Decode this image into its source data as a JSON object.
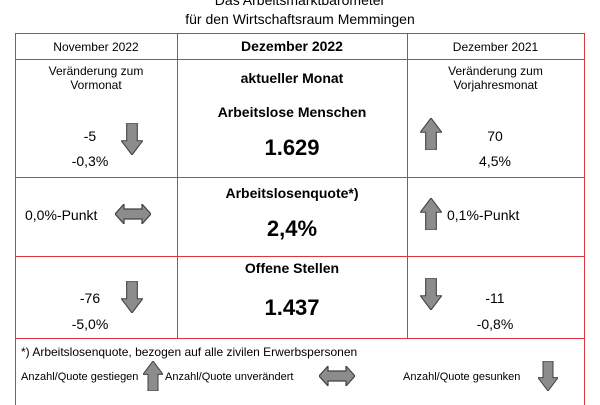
{
  "title_line1": "Das Arbeitsmarktbarometer",
  "title_line2": "für den Wirtschaftsraum Memmingen",
  "header": {
    "left_month": "November 2022",
    "center_month": "Dezember 2022",
    "right_month": "Dezember 2021",
    "left_sub_line1": "Veränderung zum",
    "left_sub_line2": "Vormonat",
    "center_sub": "aktueller Monat",
    "right_sub_line1": "Veränderung zum",
    "right_sub_line2": "Vorjahresmonat"
  },
  "rows": [
    {
      "label": "Arbeitslose Menschen",
      "value": "1.629",
      "left_abs": "-5",
      "left_pct": "-0,3%",
      "right_abs": "70",
      "right_pct": "4,5%"
    },
    {
      "label": "Arbeitslosenquote*)",
      "value": "2,4%",
      "left_change": "0,0%-Punkt",
      "right_change": "0,1%-Punkt"
    },
    {
      "label": "Offene Stellen",
      "value": "1.437",
      "left_abs": "-76",
      "left_pct": "-5,0%",
      "right_abs": "-11",
      "right_pct": "-0,8%"
    }
  ],
  "footnote": "*) Arbeitslosenquote, bezogen auf alle zivilen Erwerbspersonen",
  "legend": {
    "up": "Anzahl/Quote gestiegen",
    "same": "Anzahl/Quote unverändert",
    "down": "Anzahl/Quote gesunken"
  },
  "colors": {
    "grid_line": "#d9363e",
    "arrow_fill": "#8c8c8c",
    "arrow_stroke": "#404040"
  }
}
